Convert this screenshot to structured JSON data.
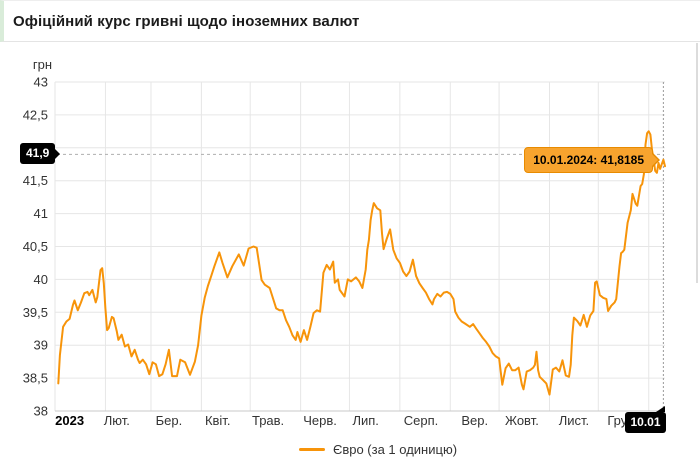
{
  "title": "Офіційний курс гривні щодо іноземних валют",
  "legend": {
    "label": "Євро (за 1 одиницю)"
  },
  "tooltip": {
    "text": "10.01.2024: 41,8185"
  },
  "crosshair_labels": {
    "y": "41,9",
    "x": "10.01"
  },
  "colors": {
    "line": "#f7940a",
    "tooltip_bg": "#f8a42e",
    "tooltip_border": "#e88b00",
    "grid": "#e6e6e6",
    "axis_line": "#c9c9c9",
    "crosshair": "#999999",
    "dash_line": "#aeaeae",
    "axis_text": "#333333",
    "flag_bg": "#000000",
    "flag_text": "#ffffff",
    "accent_strip": "#d9ecd9"
  },
  "chart_data": {
    "type": "line",
    "title": "Офіційний курс гривні щодо іноземних валют",
    "series_name": "Євро (за 1 одиницю)",
    "ylabel": "грн",
    "ylim": [
      38,
      43
    ],
    "grid": true,
    "legend_position": "bottom-center",
    "y_ticks": [
      "43",
      "42,5",
      "42",
      "41,5",
      "41",
      "40,5",
      "40",
      "39,5",
      "39",
      "38,5",
      "38"
    ],
    "x_ticks": [
      {
        "label": "2023",
        "day": 9,
        "bold": true
      },
      {
        "label": "Лют.",
        "day": 38
      },
      {
        "label": "Бер.",
        "day": 70
      },
      {
        "label": "Квіт.",
        "day": 100
      },
      {
        "label": "Трав.",
        "day": 131
      },
      {
        "label": "Черв.",
        "day": 163
      },
      {
        "label": "Лип.",
        "day": 191
      },
      {
        "label": "Серп.",
        "day": 225
      },
      {
        "label": "Вер.",
        "day": 258
      },
      {
        "label": "Жовт.",
        "day": 287
      },
      {
        "label": "Лист.",
        "day": 319
      },
      {
        "label": "Груд.",
        "day": 349
      }
    ],
    "x_gridline_days": [
      0,
      31,
      59,
      90,
      120,
      151,
      181,
      212,
      243,
      273,
      304,
      334,
      365
    ],
    "day0_date": "2023-01-01",
    "day_span": 375,
    "highlight": {
      "date": "10.01.2024",
      "value": 41.8185,
      "day": 374,
      "cursor_value": 41.9
    },
    "points": [
      [
        2,
        38.42
      ],
      [
        3,
        38.85
      ],
      [
        5,
        39.28
      ],
      [
        7,
        39.36
      ],
      [
        9,
        39.4
      ],
      [
        11,
        39.61
      ],
      [
        12,
        39.68
      ],
      [
        14,
        39.53
      ],
      [
        16,
        39.65
      ],
      [
        18,
        39.79
      ],
      [
        20,
        39.81
      ],
      [
        21,
        39.76
      ],
      [
        23,
        39.84
      ],
      [
        25,
        39.65
      ],
      [
        26,
        39.73
      ],
      [
        28,
        40.14
      ],
      [
        29,
        40.17
      ],
      [
        30,
        39.94
      ],
      [
        31,
        39.56
      ],
      [
        32,
        39.23
      ],
      [
        33,
        39.26
      ],
      [
        35,
        39.43
      ],
      [
        36,
        39.41
      ],
      [
        38,
        39.21
      ],
      [
        39,
        39.08
      ],
      [
        41,
        39.16
      ],
      [
        43,
        38.98
      ],
      [
        45,
        39.01
      ],
      [
        47,
        38.83
      ],
      [
        49,
        38.93
      ],
      [
        51,
        38.78
      ],
      [
        52,
        38.73
      ],
      [
        54,
        38.78
      ],
      [
        56,
        38.71
      ],
      [
        58,
        38.56
      ],
      [
        60,
        38.74
      ],
      [
        62,
        38.71
      ],
      [
        64,
        38.53
      ],
      [
        66,
        38.56
      ],
      [
        68,
        38.71
      ],
      [
        70,
        38.93
      ],
      [
        72,
        38.53
      ],
      [
        75,
        38.53
      ],
      [
        77,
        38.78
      ],
      [
        80,
        38.74
      ],
      [
        83,
        38.55
      ],
      [
        86,
        38.75
      ],
      [
        88,
        39.0
      ],
      [
        90,
        39.45
      ],
      [
        92,
        39.72
      ],
      [
        94,
        39.9
      ],
      [
        96,
        40.05
      ],
      [
        98,
        40.2
      ],
      [
        101,
        40.41
      ],
      [
        103,
        40.25
      ],
      [
        106,
        40.03
      ],
      [
        109,
        40.2
      ],
      [
        113,
        40.38
      ],
      [
        116,
        40.21
      ],
      [
        119,
        40.47
      ],
      [
        122,
        40.5
      ],
      [
        124,
        40.48
      ],
      [
        127,
        39.99
      ],
      [
        129,
        39.92
      ],
      [
        132,
        39.87
      ],
      [
        136,
        39.56
      ],
      [
        138,
        39.53
      ],
      [
        140,
        39.53
      ],
      [
        142,
        39.38
      ],
      [
        144,
        39.28
      ],
      [
        146,
        39.15
      ],
      [
        148,
        39.08
      ],
      [
        149,
        39.2
      ],
      [
        151,
        39.05
      ],
      [
        153,
        39.23
      ],
      [
        155,
        39.08
      ],
      [
        157,
        39.28
      ],
      [
        159,
        39.49
      ],
      [
        161,
        39.53
      ],
      [
        163,
        39.51
      ],
      [
        165,
        40.1
      ],
      [
        167,
        40.22
      ],
      [
        169,
        40.15
      ],
      [
        171,
        40.27
      ],
      [
        172,
        39.95
      ],
      [
        174,
        40.0
      ],
      [
        175,
        39.84
      ],
      [
        178,
        39.74
      ],
      [
        180,
        40.0
      ],
      [
        182,
        39.97
      ],
      [
        185,
        40.03
      ],
      [
        187,
        39.97
      ],
      [
        189,
        39.87
      ],
      [
        191,
        40.15
      ],
      [
        192,
        40.45
      ],
      [
        193,
        40.6
      ],
      [
        194,
        40.9
      ],
      [
        195,
        41.05
      ],
      [
        196,
        41.16
      ],
      [
        198,
        41.08
      ],
      [
        200,
        41.05
      ],
      [
        201,
        40.7
      ],
      [
        202,
        40.46
      ],
      [
        204,
        40.62
      ],
      [
        206,
        40.76
      ],
      [
        208,
        40.45
      ],
      [
        210,
        40.32
      ],
      [
        212,
        40.25
      ],
      [
        214,
        40.12
      ],
      [
        216,
        40.05
      ],
      [
        218,
        40.12
      ],
      [
        220,
        40.3
      ],
      [
        222,
        40.05
      ],
      [
        224,
        39.94
      ],
      [
        226,
        39.87
      ],
      [
        228,
        39.8
      ],
      [
        230,
        39.7
      ],
      [
        232,
        39.62
      ],
      [
        233,
        39.7
      ],
      [
        235,
        39.78
      ],
      [
        237,
        39.74
      ],
      [
        239,
        39.8
      ],
      [
        241,
        39.81
      ],
      [
        243,
        39.78
      ],
      [
        245,
        39.7
      ],
      [
        246,
        39.51
      ],
      [
        248,
        39.42
      ],
      [
        250,
        39.36
      ],
      [
        252,
        39.33
      ],
      [
        255,
        39.28
      ],
      [
        257,
        39.32
      ],
      [
        259,
        39.25
      ],
      [
        261,
        39.18
      ],
      [
        263,
        39.11
      ],
      [
        265,
        39.05
      ],
      [
        267,
        38.98
      ],
      [
        269,
        38.88
      ],
      [
        271,
        38.83
      ],
      [
        273,
        38.8
      ],
      [
        275,
        38.4
      ],
      [
        277,
        38.65
      ],
      [
        279,
        38.72
      ],
      [
        281,
        38.62
      ],
      [
        283,
        38.62
      ],
      [
        285,
        38.66
      ],
      [
        287,
        38.4
      ],
      [
        288,
        38.33
      ],
      [
        290,
        38.6
      ],
      [
        292,
        38.62
      ],
      [
        294,
        38.66
      ],
      [
        295,
        38.7
      ],
      [
        296,
        38.9
      ],
      [
        297,
        38.62
      ],
      [
        298,
        38.52
      ],
      [
        300,
        38.47
      ],
      [
        302,
        38.42
      ],
      [
        304,
        38.25
      ],
      [
        306,
        38.63
      ],
      [
        308,
        38.66
      ],
      [
        310,
        38.6
      ],
      [
        312,
        38.77
      ],
      [
        314,
        38.54
      ],
      [
        316,
        38.52
      ],
      [
        317,
        38.7
      ],
      [
        318,
        39.15
      ],
      [
        319,
        39.42
      ],
      [
        321,
        39.37
      ],
      [
        323,
        39.3
      ],
      [
        325,
        39.46
      ],
      [
        327,
        39.28
      ],
      [
        329,
        39.45
      ],
      [
        331,
        39.52
      ],
      [
        332,
        39.95
      ],
      [
        333,
        39.97
      ],
      [
        335,
        39.76
      ],
      [
        337,
        39.72
      ],
      [
        339,
        39.7
      ],
      [
        340,
        39.52
      ],
      [
        342,
        39.6
      ],
      [
        344,
        39.65
      ],
      [
        345,
        39.7
      ],
      [
        346,
        39.94
      ],
      [
        347,
        40.2
      ],
      [
        348,
        40.4
      ],
      [
        349,
        40.42
      ],
      [
        350,
        40.45
      ],
      [
        352,
        40.86
      ],
      [
        354,
        41.05
      ],
      [
        355,
        41.3
      ],
      [
        357,
        41.15
      ],
      [
        358,
        41.12
      ],
      [
        360,
        41.42
      ],
      [
        361,
        41.45
      ],
      [
        362,
        41.6
      ],
      [
        363,
        42.05
      ],
      [
        364,
        42.22
      ],
      [
        365,
        42.25
      ],
      [
        366,
        42.2
      ],
      [
        367,
        41.97
      ],
      [
        368,
        41.82
      ],
      [
        369,
        41.65
      ],
      [
        370,
        41.62
      ],
      [
        371,
        41.77
      ],
      [
        372,
        41.68
      ],
      [
        373,
        41.75
      ],
      [
        374,
        41.8185
      ],
      [
        375,
        41.72
      ]
    ]
  }
}
